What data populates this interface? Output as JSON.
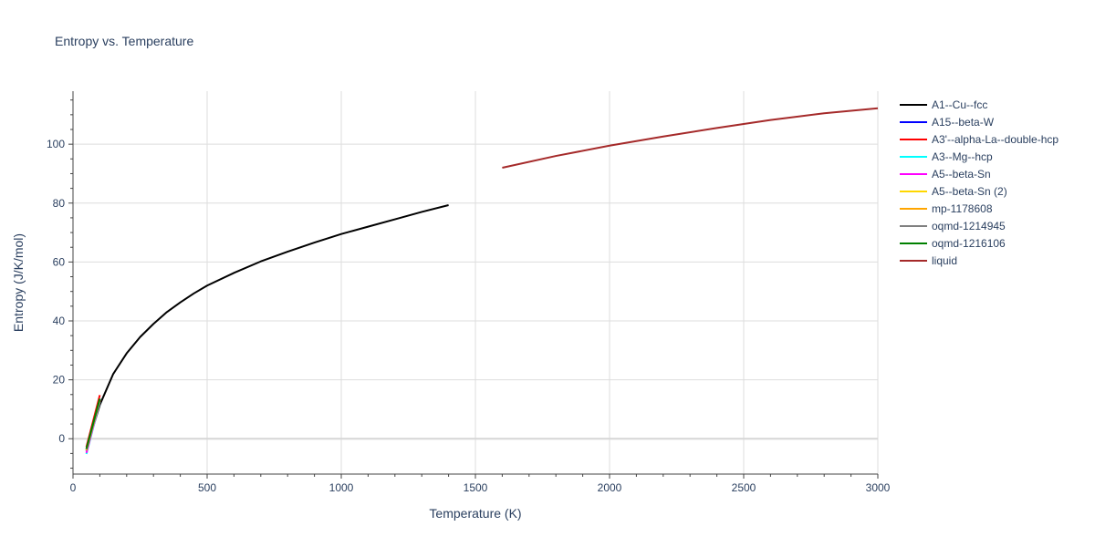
{
  "chart_data": {
    "type": "line",
    "title": "Entropy vs. Temperature",
    "xlabel": "Temperature (K)",
    "ylabel": "Entropy (J/K/mol)",
    "xlim": [
      0,
      3000
    ],
    "ylim": [
      -12,
      118
    ],
    "x_ticks": [
      0,
      500,
      1000,
      1500,
      2000,
      2500,
      3000
    ],
    "y_ticks": [
      0,
      20,
      40,
      60,
      80,
      100
    ],
    "grid": true,
    "legend_position": "right",
    "series": [
      {
        "name": "A1--Cu--fcc",
        "color": "#000000",
        "x": [
          50,
          100,
          150,
          200,
          250,
          300,
          350,
          400,
          450,
          500,
          600,
          700,
          800,
          900,
          1000,
          1100,
          1200,
          1300,
          1400
        ],
        "y": [
          -3.5,
          11.5,
          22,
          29,
          34.5,
          39,
          43,
          46.3,
          49.3,
          52,
          56.3,
          60.2,
          63.5,
          66.6,
          69.5,
          72,
          74.5,
          77,
          79.3
        ]
      },
      {
        "name": "A15--beta-W",
        "color": "#0000ff",
        "x": [
          50,
          100
        ],
        "y": [
          -4.2,
          13.5
        ]
      },
      {
        "name": "A3'--alpha-La--double-hcp",
        "color": "#ff0000",
        "x": [
          50,
          100
        ],
        "y": [
          -2.8,
          14.8
        ]
      },
      {
        "name": "A3--Mg--hcp",
        "color": "#00ffff",
        "x": [
          50,
          100
        ],
        "y": [
          -5.2,
          12.5
        ]
      },
      {
        "name": "A5--beta-Sn",
        "color": "#ff00ff",
        "x": [
          50,
          100
        ],
        "y": [
          -4.8,
          12.8
        ]
      },
      {
        "name": "A5--beta-Sn (2)",
        "color": "#ffd700",
        "x": [
          50,
          100
        ],
        "y": [
          -4.0,
          13.0
        ]
      },
      {
        "name": "mp-1178608",
        "color": "#ffa500",
        "x": [
          50,
          100
        ],
        "y": [
          -3.8,
          13.2
        ]
      },
      {
        "name": "oqmd-1214945",
        "color": "#808080",
        "x": [
          50,
          100
        ],
        "y": [
          -3.6,
          13.4
        ]
      },
      {
        "name": "oqmd-1216106",
        "color": "#008000",
        "x": [
          50,
          100
        ],
        "y": [
          -3.4,
          13.6
        ]
      },
      {
        "name": "liquid",
        "color": "#a52a2a",
        "x": [
          1600,
          1800,
          2000,
          2200,
          2400,
          2600,
          2800,
          3000
        ],
        "y": [
          92,
          96,
          99.5,
          102.6,
          105.5,
          108.2,
          110.5,
          112.2
        ]
      }
    ]
  }
}
